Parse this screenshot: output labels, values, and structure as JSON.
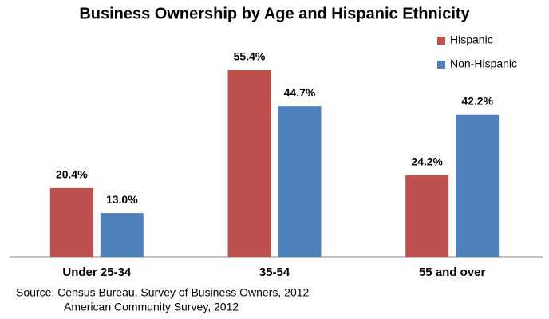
{
  "chart_data": {
    "type": "bar",
    "title": "Business Ownership by Age and Hispanic Ethnicity",
    "categories": [
      "Under 25-34",
      "35-54",
      "55 and over"
    ],
    "series": [
      {
        "name": "Hispanic",
        "color": "#c0504d",
        "values": [
          20.4,
          55.4,
          24.2
        ],
        "value_labels": [
          "20.4%",
          "55.4%",
          "24.2%"
        ]
      },
      {
        "name": "Non-Hispanic",
        "color": "#4f81bd",
        "values": [
          13.0,
          44.7,
          42.2
        ],
        "value_labels": [
          "13.0%",
          "44.7%",
          "42.2%"
        ]
      }
    ],
    "legend": "top-right",
    "source": [
      "Source: Census Bureau, Survey of Business Owners, 2012",
      "American Community Survey, 2012"
    ]
  }
}
